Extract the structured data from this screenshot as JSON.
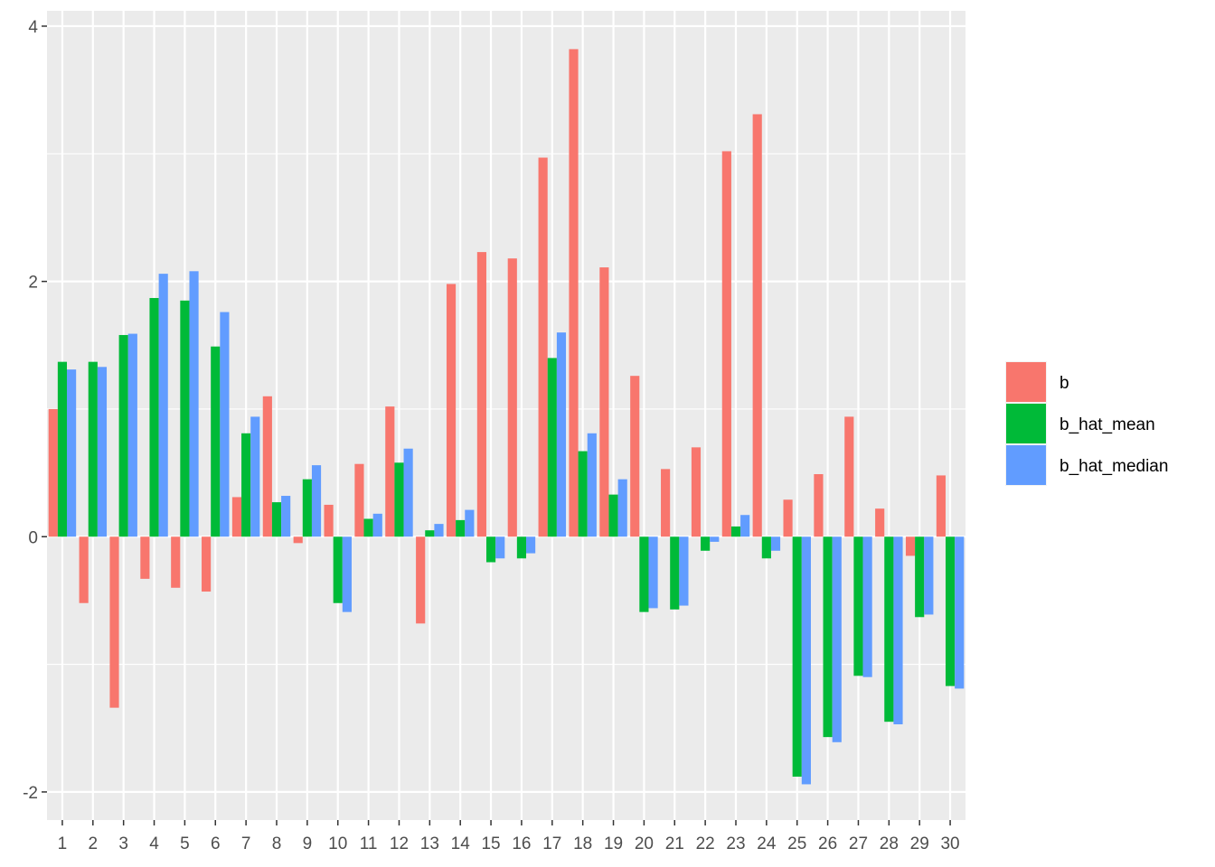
{
  "chart_data": {
    "type": "bar",
    "categories": [
      "1",
      "2",
      "3",
      "4",
      "5",
      "6",
      "7",
      "8",
      "9",
      "10",
      "11",
      "12",
      "13",
      "14",
      "15",
      "16",
      "17",
      "18",
      "19",
      "20",
      "21",
      "22",
      "23",
      "24",
      "25",
      "26",
      "27",
      "28",
      "29",
      "30"
    ],
    "series": [
      {
        "name": "b",
        "color": "#F8766D",
        "values": [
          1.0,
          -0.52,
          -1.34,
          -0.33,
          -0.4,
          -0.43,
          0.31,
          1.1,
          -0.05,
          0.25,
          0.57,
          1.02,
          -0.68,
          1.98,
          2.23,
          2.18,
          2.97,
          3.82,
          2.11,
          1.26,
          0.53,
          0.7,
          3.02,
          3.31,
          0.29,
          0.49,
          0.94,
          0.22,
          -0.15,
          0.48
        ]
      },
      {
        "name": "b_hat_mean",
        "color": "#00BA38",
        "values": [
          1.37,
          1.37,
          1.58,
          1.87,
          1.85,
          1.49,
          0.81,
          0.27,
          0.45,
          -0.52,
          0.14,
          0.58,
          0.05,
          0.13,
          -0.2,
          -0.17,
          1.4,
          0.67,
          0.33,
          -0.59,
          -0.57,
          -0.11,
          0.08,
          -0.17,
          -1.88,
          -1.57,
          -1.09,
          -1.45,
          -0.63,
          -1.17
        ]
      },
      {
        "name": "b_hat_median",
        "color": "#619CFF",
        "values": [
          1.31,
          1.33,
          1.59,
          2.06,
          2.08,
          1.76,
          0.94,
          0.32,
          0.56,
          -0.59,
          0.18,
          0.69,
          0.1,
          0.21,
          -0.17,
          -0.13,
          1.6,
          0.81,
          0.45,
          -0.56,
          -0.54,
          -0.04,
          0.17,
          -0.11,
          -1.94,
          -1.61,
          -1.1,
          -1.47,
          -0.61,
          -1.19
        ]
      }
    ],
    "xlabel": "",
    "ylabel": "",
    "ylim": [
      -2.22,
      4.12
    ],
    "yticks": [
      -2,
      0,
      2,
      4
    ],
    "grid": true,
    "legend_position": "right",
    "panel_background": "#EBEBEB",
    "grid_color": "#FFFFFF"
  }
}
